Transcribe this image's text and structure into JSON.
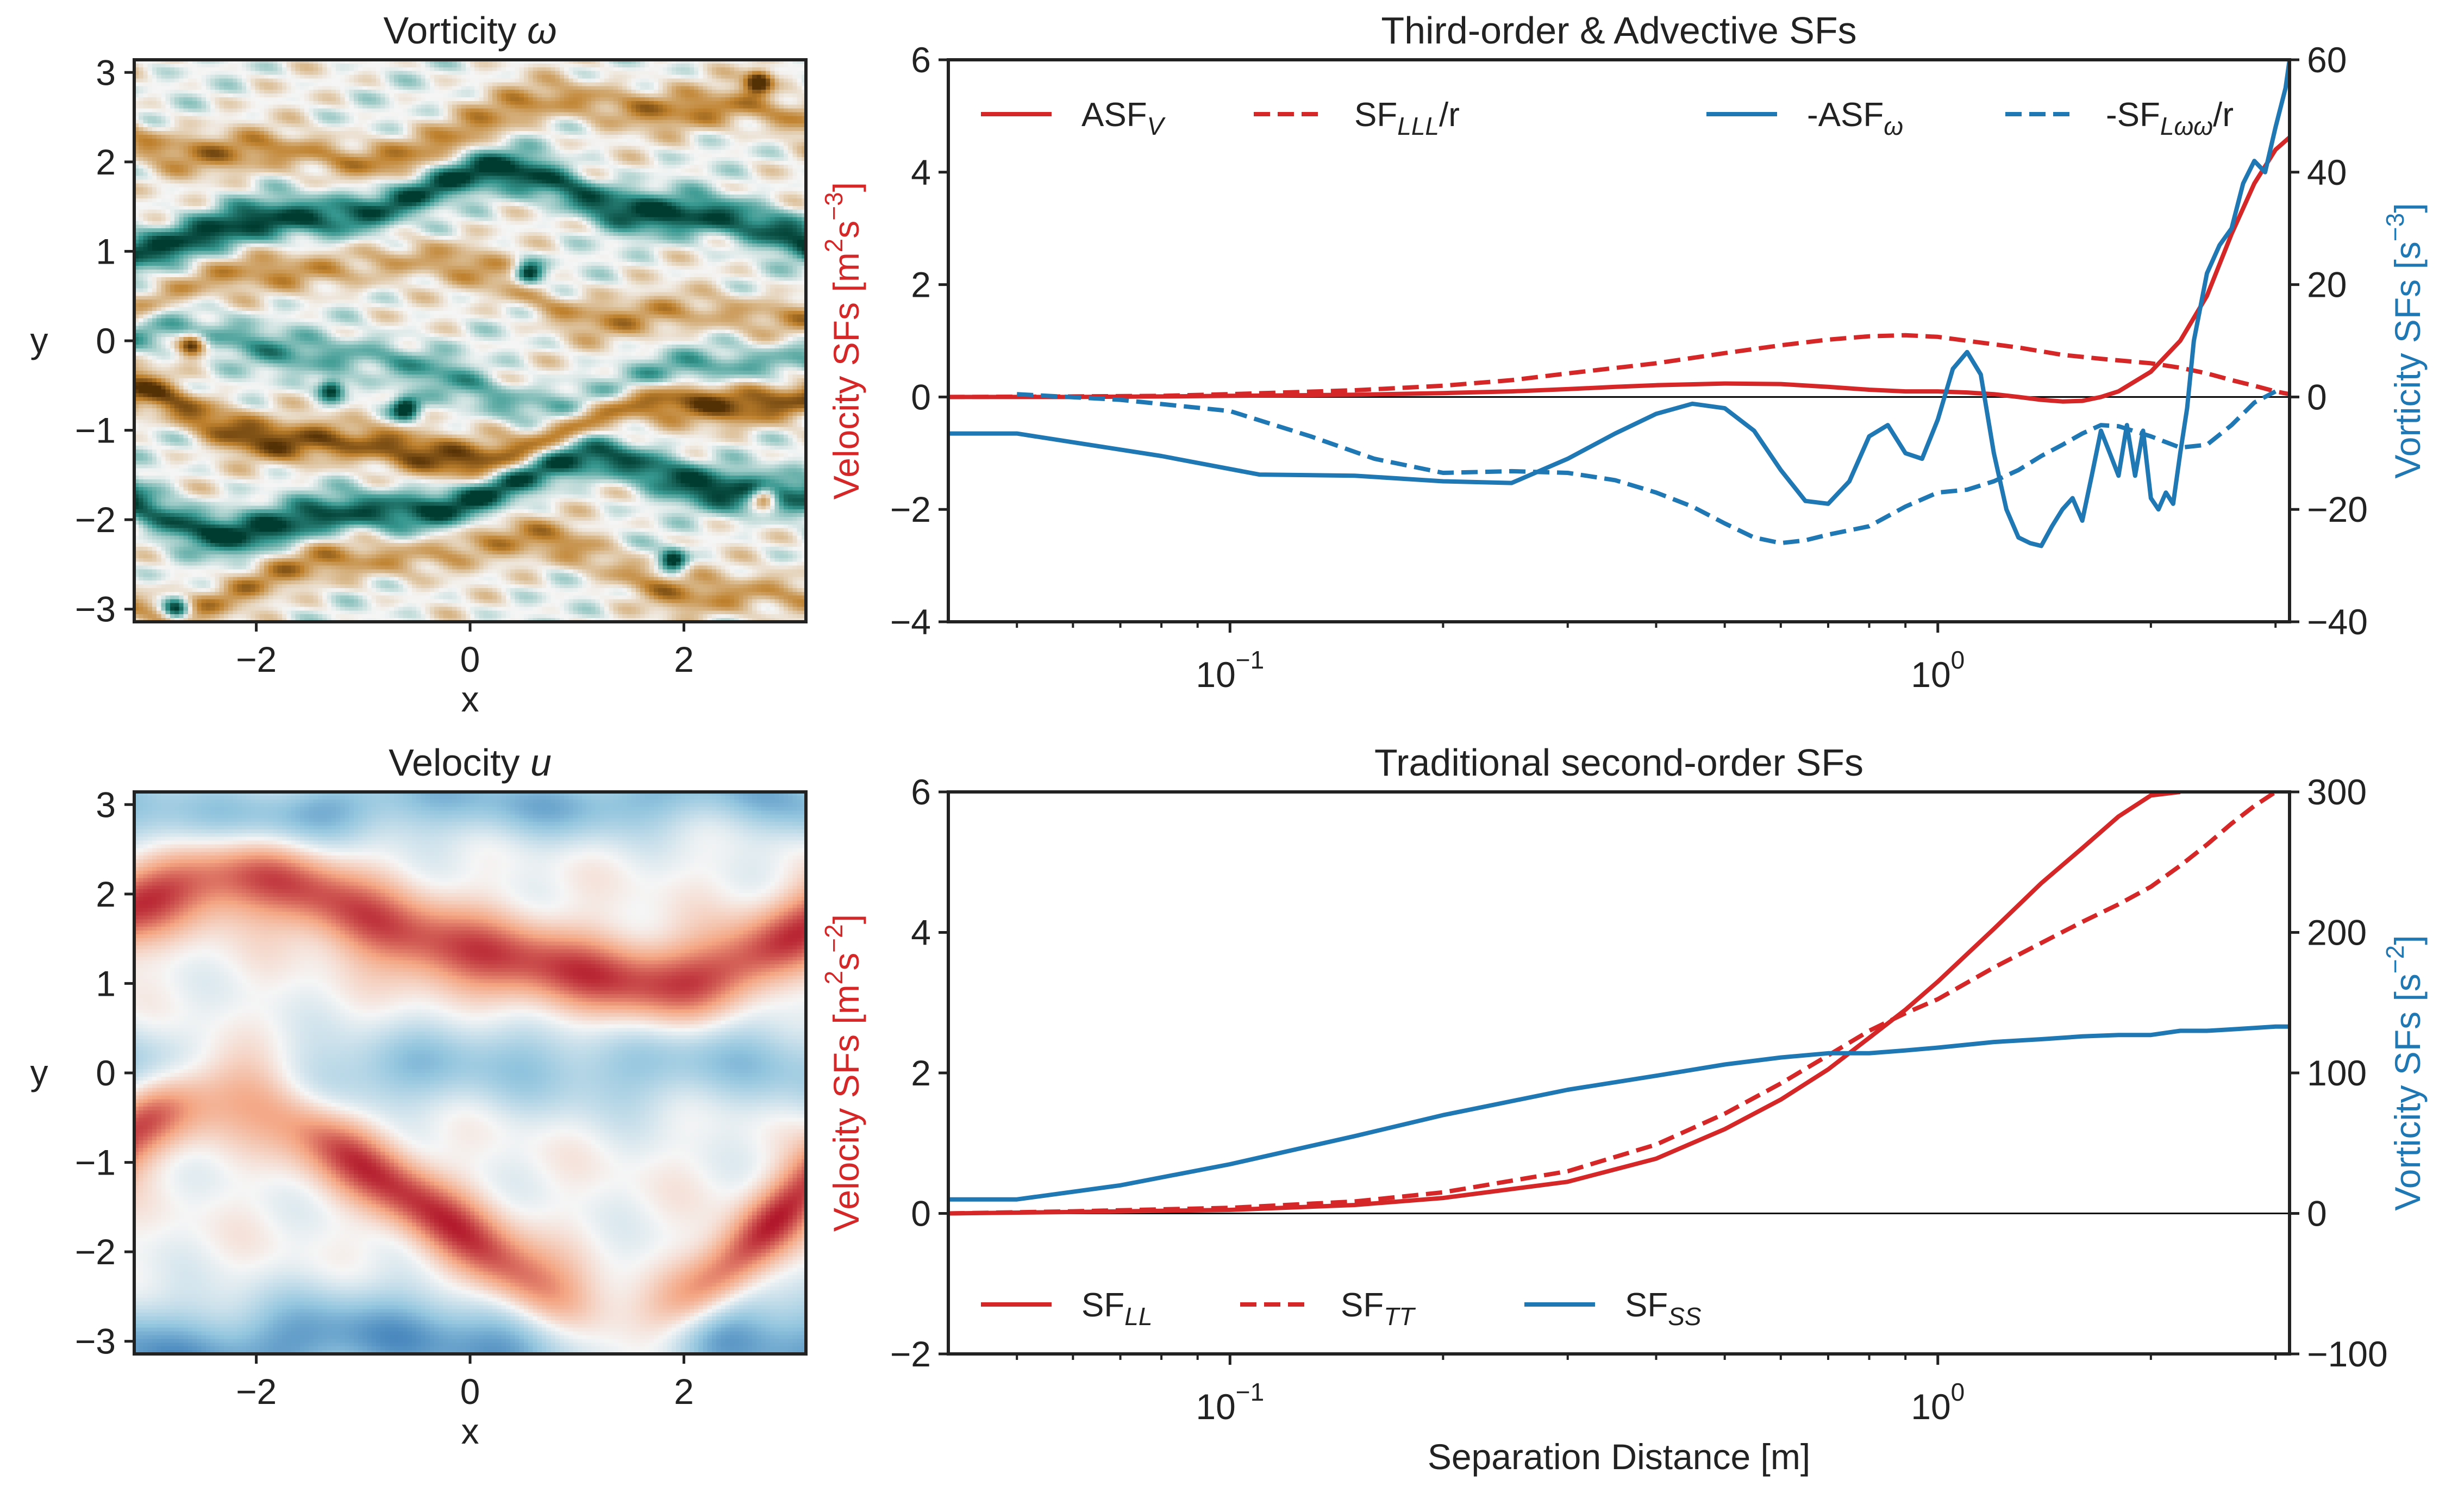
{
  "colors": {
    "red": "#d62728",
    "blue": "#1f77b4",
    "axis": "#222222",
    "brown_dark": "#543005",
    "brown": "#bf812d",
    "teal": "#35978f",
    "teal_dark": "#003c30",
    "rdbu_red": "#b2182b",
    "rdbu_blue": "#2166ac"
  },
  "chart_data": [
    {
      "type": "heatmap",
      "title": "Vorticity ω",
      "title_text": "Vorticity ",
      "title_symbol": "ω",
      "colormap": "brown-white-teal (diverging)",
      "xlabel": "x",
      "ylabel": "y",
      "xlim": [
        -3.14159,
        3.14159
      ],
      "ylim": [
        -3.14159,
        3.14159
      ],
      "xticks": [
        -2,
        0,
        2
      ],
      "xtick_labels": [
        "−2",
        "0",
        "2"
      ],
      "yticks": [
        3,
        2,
        1,
        0,
        -1,
        -2,
        -3
      ],
      "ytick_labels": [
        "3",
        "2",
        "1",
        "0",
        "−1",
        "−2",
        "−3"
      ],
      "bands": [
        {
          "y": 2.35,
          "sign": -1,
          "strength": 0.55
        },
        {
          "y": 1.45,
          "sign": 1,
          "strength": 0.95
        },
        {
          "y": 0.55,
          "sign": -1,
          "strength": 0.45
        },
        {
          "y": -0.3,
          "sign": 1,
          "strength": 0.5
        },
        {
          "y": -0.95,
          "sign": -1,
          "strength": 0.85
        },
        {
          "y": -1.75,
          "sign": 1,
          "strength": 0.95
        },
        {
          "y": -2.6,
          "sign": -1,
          "strength": 0.5
        }
      ],
      "vortices": [
        {
          "x": -2.6,
          "y": -0.05,
          "sign": -1
        },
        {
          "x": 2.75,
          "y": -1.75,
          "sign": -1
        },
        {
          "x": -1.3,
          "y": -0.55,
          "sign": 1
        },
        {
          "x": -0.6,
          "y": -0.75,
          "sign": 1
        },
        {
          "x": 1.9,
          "y": -2.45,
          "sign": 1
        },
        {
          "x": -2.75,
          "y": -3.0,
          "sign": 1
        },
        {
          "x": 0.55,
          "y": 0.75,
          "sign": 1
        },
        {
          "x": 2.7,
          "y": 2.9,
          "sign": -1
        }
      ]
    },
    {
      "type": "line",
      "title": "Third-order & Advective SFs",
      "xscale": "log",
      "xlim": [
        0.04,
        3.14
      ],
      "xticks": [
        0.1,
        1.0
      ],
      "xtick_labels": [
        {
          "base": "10",
          "exp": "−1"
        },
        {
          "base": "10",
          "exp": "0"
        }
      ],
      "xlabel": "",
      "ylim_left": [
        -4,
        6
      ],
      "yticks_left": [
        6,
        4,
        2,
        0,
        -2,
        -4
      ],
      "ytick_labels_left": [
        "6",
        "4",
        "2",
        "0",
        "−2",
        "−4"
      ],
      "ylabel_left": {
        "main": "Velocity SFs [m",
        "sup1": "2",
        "mid": "s",
        "sup2": "−3",
        "end": "]"
      },
      "ylim_right": [
        -40,
        60
      ],
      "yticks_right": [
        60,
        40,
        20,
        0,
        -20,
        -40
      ],
      "ytick_labels_right": [
        "60",
        "40",
        "20",
        "0",
        "−20",
        "−40"
      ],
      "ylabel_right": {
        "main": "Vorticity SFs [s",
        "sup1": "−3",
        "end": "]"
      },
      "legend": "top, one row, 4 entries",
      "series": [
        {
          "name": "ASF_V",
          "label_base": "ASF",
          "label_sub": "V",
          "axis": "left",
          "color": "red",
          "dash": "solid",
          "x": [
            0.04,
            0.06,
            0.08,
            0.1,
            0.15,
            0.2,
            0.25,
            0.3,
            0.35,
            0.4,
            0.5,
            0.6,
            0.7,
            0.8,
            0.9,
            1.0,
            1.1,
            1.2,
            1.3,
            1.4,
            1.5,
            1.6,
            1.7,
            1.8,
            2.0,
            2.2,
            2.4,
            2.6,
            2.8,
            3.0,
            3.14
          ],
          "y": [
            0.0,
            0.0,
            0.01,
            0.02,
            0.04,
            0.07,
            0.1,
            0.14,
            0.18,
            0.21,
            0.24,
            0.23,
            0.18,
            0.13,
            0.1,
            0.1,
            0.08,
            0.05,
            0.0,
            -0.05,
            -0.08,
            -0.07,
            0.0,
            0.1,
            0.45,
            1.0,
            1.8,
            2.9,
            3.8,
            4.4,
            4.62
          ]
        },
        {
          "name": "SF_LLL/r",
          "label_base": "SF",
          "label_sub": "LLL",
          "label_suffix": "/r",
          "axis": "left",
          "color": "red",
          "dash": "dashed",
          "x": [
            0.04,
            0.06,
            0.08,
            0.1,
            0.15,
            0.2,
            0.25,
            0.3,
            0.4,
            0.5,
            0.6,
            0.7,
            0.8,
            0.9,
            1.0,
            1.1,
            1.3,
            1.5,
            1.7,
            2.0,
            2.2,
            2.4,
            2.6,
            2.8,
            3.0,
            3.14
          ],
          "y": [
            0.0,
            0.01,
            0.02,
            0.05,
            0.12,
            0.2,
            0.3,
            0.42,
            0.6,
            0.78,
            0.92,
            1.02,
            1.08,
            1.1,
            1.07,
            1.0,
            0.88,
            0.75,
            0.68,
            0.6,
            0.52,
            0.42,
            0.3,
            0.2,
            0.1,
            0.05
          ]
        },
        {
          "name": "-ASF_ω",
          "label_base": "-ASF",
          "label_sub": "ω",
          "axis": "right",
          "color": "blue",
          "dash": "solid",
          "x": [
            0.04,
            0.05,
            0.08,
            0.11,
            0.15,
            0.2,
            0.25,
            0.3,
            0.35,
            0.4,
            0.45,
            0.5,
            0.55,
            0.6,
            0.65,
            0.7,
            0.75,
            0.8,
            0.85,
            0.9,
            0.95,
            1.0,
            1.05,
            1.1,
            1.15,
            1.2,
            1.25,
            1.3,
            1.35,
            1.4,
            1.45,
            1.5,
            1.55,
            1.6,
            1.65,
            1.7,
            1.75,
            1.8,
            1.85,
            1.9,
            1.95,
            2.0,
            2.05,
            2.1,
            2.15,
            2.2,
            2.25,
            2.3,
            2.4,
            2.5,
            2.6,
            2.7,
            2.8,
            2.9,
            3.0,
            3.1,
            3.14
          ],
          "y": [
            -6.5,
            -6.5,
            -10.5,
            -13.8,
            -14.0,
            -15.0,
            -15.3,
            -11.0,
            -6.5,
            -3.0,
            -1.2,
            -2.0,
            -6.0,
            -13.0,
            -18.5,
            -19.0,
            -15.0,
            -7.0,
            -5.0,
            -10.0,
            -11.0,
            -4.0,
            5.0,
            8.0,
            4.0,
            -10.0,
            -20.0,
            -25.0,
            -26.0,
            -26.5,
            -23.0,
            -20.0,
            -18.0,
            -22.0,
            -14.0,
            -6.0,
            -10.0,
            -14.0,
            -5.0,
            -14.0,
            -6.0,
            -18.0,
            -20.0,
            -17.0,
            -19.0,
            -10.0,
            -2.0,
            10.0,
            22.0,
            27.0,
            30.0,
            38.0,
            42.0,
            40.0,
            48.0,
            55.0,
            60.0
          ]
        },
        {
          "name": "-SF_Lωω/r",
          "label_base": "-SF",
          "label_sub": "Lωω",
          "label_suffix": "/r",
          "axis": "right",
          "color": "blue",
          "dash": "dashed",
          "x": [
            0.05,
            0.07,
            0.1,
            0.13,
            0.16,
            0.2,
            0.25,
            0.3,
            0.35,
            0.4,
            0.45,
            0.5,
            0.55,
            0.6,
            0.65,
            0.7,
            0.8,
            0.9,
            1.0,
            1.1,
            1.2,
            1.3,
            1.4,
            1.5,
            1.6,
            1.7,
            1.8,
            2.0,
            2.2,
            2.4,
            2.6,
            2.8,
            3.0
          ],
          "y": [
            0.5,
            -0.5,
            -2.5,
            -7.0,
            -11.0,
            -13.5,
            -13.2,
            -13.5,
            -14.8,
            -17.0,
            -19.5,
            -22.5,
            -25.0,
            -26.0,
            -25.5,
            -24.5,
            -23.0,
            -19.5,
            -17.0,
            -16.5,
            -15.0,
            -13.0,
            -10.5,
            -8.5,
            -6.5,
            -5.0,
            -5.2,
            -7.0,
            -9.0,
            -8.5,
            -5.0,
            -1.0,
            1.0
          ]
        }
      ]
    },
    {
      "type": "heatmap",
      "title": "Velocity u",
      "title_text": "Velocity ",
      "title_symbol": "u",
      "colormap": "red-white-blue (diverging)",
      "xlabel": "x",
      "ylabel": "y",
      "xlim": [
        -3.14159,
        3.14159
      ],
      "ylim": [
        -3.14159,
        3.14159
      ],
      "xticks": [
        -2,
        0,
        2
      ],
      "xtick_labels": [
        "−2",
        "0",
        "2"
      ],
      "yticks": [
        3,
        2,
        1,
        0,
        -1,
        -2,
        -3
      ],
      "ytick_labels": [
        "3",
        "2",
        "1",
        "0",
        "−1",
        "−2",
        "−3"
      ],
      "jets": [
        {
          "y": 1.55,
          "amp": -0.25,
          "sign": 1,
          "strength": 0.85,
          "width": 0.5
        },
        {
          "y": -1.5,
          "amp": -0.55,
          "sign": 1,
          "strength": 0.9,
          "width": 0.5
        },
        {
          "y": 0.0,
          "amp": 0.15,
          "sign": -1,
          "strength": 0.45,
          "width": 0.55
        },
        {
          "y": 3.0,
          "amp": 0.1,
          "sign": -1,
          "strength": 0.55,
          "width": 0.45
        },
        {
          "y": -3.0,
          "amp": 0.1,
          "sign": -1,
          "strength": 0.7,
          "width": 0.6
        }
      ]
    },
    {
      "type": "line",
      "title": "Traditional second-order SFs",
      "xscale": "log",
      "xlim": [
        0.04,
        3.14
      ],
      "xticks": [
        0.1,
        1.0
      ],
      "xtick_labels": [
        {
          "base": "10",
          "exp": "−1"
        },
        {
          "base": "10",
          "exp": "0"
        }
      ],
      "xlabel": "Separation Distance [m]",
      "ylim_left": [
        -2,
        6
      ],
      "yticks_left": [
        6,
        4,
        2,
        0,
        -2
      ],
      "ytick_labels_left": [
        "6",
        "4",
        "2",
        "0",
        "−2"
      ],
      "ylabel_left": {
        "main": "Velocity SFs [m",
        "sup1": "2",
        "mid": "s",
        "sup2": "−2",
        "end": "]"
      },
      "ylim_right": [
        -100,
        300
      ],
      "yticks_right": [
        300,
        200,
        100,
        0,
        -100
      ],
      "ytick_labels_right": [
        "300",
        "200",
        "100",
        "0",
        "−100"
      ],
      "ylabel_right": {
        "main": "Vorticity SFs [s",
        "sup1": "−2",
        "end": "]"
      },
      "legend": "bottom, one row, 3 entries",
      "series": [
        {
          "name": "SF_LL",
          "label_base": "SF",
          "label_sub": "LL",
          "axis": "left",
          "color": "red",
          "dash": "solid",
          "x": [
            0.04,
            0.06,
            0.1,
            0.15,
            0.2,
            0.3,
            0.4,
            0.5,
            0.6,
            0.7,
            0.8,
            0.9,
            1.0,
            1.2,
            1.4,
            1.6,
            1.8,
            2.0,
            2.2
          ],
          "y": [
            0.0,
            0.02,
            0.05,
            0.12,
            0.22,
            0.45,
            0.78,
            1.2,
            1.62,
            2.05,
            2.5,
            2.9,
            3.3,
            4.05,
            4.7,
            5.2,
            5.65,
            5.95,
            6.0
          ]
        },
        {
          "name": "SF_TT",
          "label_base": "SF",
          "label_sub": "TT",
          "axis": "left",
          "color": "red",
          "dash": "dashed",
          "x": [
            0.04,
            0.06,
            0.1,
            0.15,
            0.2,
            0.3,
            0.4,
            0.5,
            0.6,
            0.7,
            0.8,
            0.9,
            1.0,
            1.2,
            1.4,
            1.6,
            1.8,
            2.0,
            2.2,
            2.4,
            2.6,
            2.8,
            3.0
          ],
          "y": [
            0.0,
            0.03,
            0.08,
            0.17,
            0.3,
            0.6,
            0.98,
            1.42,
            1.85,
            2.25,
            2.6,
            2.85,
            3.05,
            3.5,
            3.85,
            4.15,
            4.4,
            4.65,
            4.95,
            5.25,
            5.55,
            5.8,
            6.0
          ]
        },
        {
          "name": "SF_SS",
          "label_base": "SF",
          "label_sub": "SS",
          "axis": "right",
          "color": "blue",
          "dash": "solid",
          "x": [
            0.04,
            0.05,
            0.07,
            0.1,
            0.15,
            0.2,
            0.3,
            0.4,
            0.5,
            0.6,
            0.7,
            0.8,
            0.9,
            1.0,
            1.2,
            1.4,
            1.6,
            1.8,
            2.0,
            2.2,
            2.4,
            2.6,
            2.8,
            3.0,
            3.14
          ],
          "y": [
            10,
            10,
            20,
            35,
            55,
            70,
            88,
            98,
            106,
            111,
            114,
            114,
            116,
            118,
            122,
            124,
            126,
            127,
            127,
            130,
            130,
            131,
            132,
            133,
            133
          ]
        }
      ]
    }
  ]
}
